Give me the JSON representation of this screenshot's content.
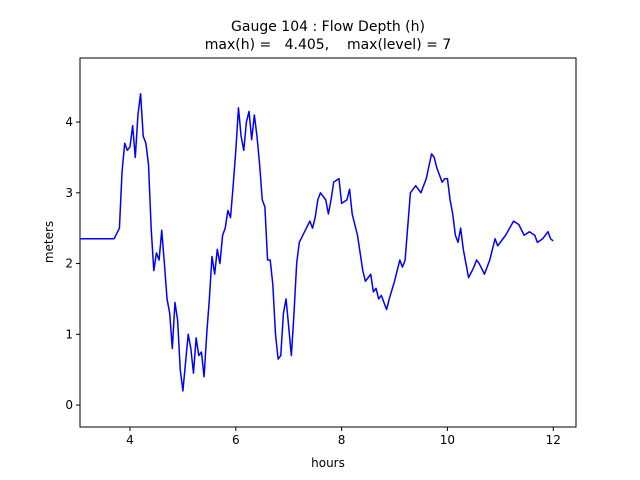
{
  "chart_data": {
    "type": "line",
    "title": "Gauge 104 : Flow Depth (h)",
    "subtitle": "max(h) =   4.405,    max(level) = 7",
    "xlabel": "hours",
    "ylabel": "meters",
    "xlim": [
      3.055,
      12.43
    ],
    "ylim": [
      -0.31,
      4.905
    ],
    "xticks": [
      4,
      6,
      8,
      10,
      12
    ],
    "yticks": [
      0,
      1,
      2,
      3,
      4
    ],
    "grid": false,
    "x": [
      3.055,
      3.7,
      3.8,
      3.85,
      3.9,
      3.95,
      4.0,
      4.05,
      4.1,
      4.15,
      4.2,
      4.25,
      4.3,
      4.35,
      4.4,
      4.45,
      4.5,
      4.55,
      4.6,
      4.65,
      4.7,
      4.75,
      4.8,
      4.85,
      4.9,
      4.95,
      5.0,
      5.05,
      5.1,
      5.15,
      5.2,
      5.25,
      5.3,
      5.35,
      5.4,
      5.45,
      5.5,
      5.55,
      5.6,
      5.65,
      5.7,
      5.75,
      5.8,
      5.85,
      5.9,
      5.95,
      6.0,
      6.05,
      6.1,
      6.15,
      6.2,
      6.25,
      6.3,
      6.35,
      6.4,
      6.45,
      6.5,
      6.55,
      6.6,
      6.65,
      6.7,
      6.75,
      6.8,
      6.85,
      6.9,
      6.95,
      7.0,
      7.05,
      7.1,
      7.15,
      7.2,
      7.3,
      7.4,
      7.45,
      7.5,
      7.55,
      7.6,
      7.7,
      7.75,
      7.8,
      7.85,
      7.95,
      8.0,
      8.1,
      8.15,
      8.2,
      8.3,
      8.4,
      8.45,
      8.5,
      8.55,
      8.6,
      8.65,
      8.7,
      8.75,
      8.8,
      8.85,
      8.9,
      9.0,
      9.1,
      9.15,
      9.2,
      9.3,
      9.4,
      9.5,
      9.6,
      9.7,
      9.75,
      9.8,
      9.9,
      9.95,
      10.0,
      10.05,
      10.1,
      10.15,
      10.2,
      10.25,
      10.3,
      10.4,
      10.5,
      10.55,
      10.6,
      10.7,
      10.8,
      10.9,
      10.95,
      11.1,
      11.25,
      11.35,
      11.45,
      11.55,
      11.65,
      11.7,
      11.8,
      11.9,
      11.95,
      12.0
    ],
    "series": [
      {
        "name": "h",
        "color": "#0000ff",
        "values": [
          2.35,
          2.35,
          2.5,
          3.3,
          3.7,
          3.6,
          3.65,
          3.95,
          3.5,
          4.1,
          4.4,
          3.8,
          3.7,
          3.4,
          2.5,
          1.9,
          2.15,
          2.05,
          2.47,
          2.0,
          1.5,
          1.3,
          0.8,
          1.45,
          1.2,
          0.5,
          0.2,
          0.6,
          1.0,
          0.8,
          0.45,
          0.95,
          0.7,
          0.75,
          0.4,
          1.0,
          1.5,
          2.1,
          1.85,
          2.2,
          2.0,
          2.4,
          2.5,
          2.75,
          2.65,
          3.1,
          3.6,
          4.2,
          3.8,
          3.6,
          4.0,
          4.15,
          3.75,
          4.1,
          3.8,
          3.4,
          2.9,
          2.8,
          2.05,
          2.05,
          1.7,
          1.0,
          0.65,
          0.7,
          1.3,
          1.5,
          1.1,
          0.7,
          1.3,
          2.0,
          2.3,
          2.45,
          2.6,
          2.5,
          2.65,
          2.9,
          3.0,
          2.9,
          2.7,
          2.9,
          3.15,
          3.2,
          2.85,
          2.9,
          3.05,
          2.7,
          2.4,
          1.9,
          1.75,
          1.8,
          1.85,
          1.6,
          1.65,
          1.5,
          1.55,
          1.45,
          1.35,
          1.5,
          1.75,
          2.05,
          1.95,
          2.05,
          3.0,
          3.1,
          3.0,
          3.2,
          3.55,
          3.5,
          3.35,
          3.15,
          3.2,
          3.2,
          2.9,
          2.7,
          2.4,
          2.3,
          2.5,
          2.2,
          1.8,
          1.95,
          2.05,
          2.0,
          1.85,
          2.05,
          2.35,
          2.25,
          2.4,
          2.6,
          2.55,
          2.4,
          2.45,
          2.4,
          2.3,
          2.35,
          2.45,
          2.35,
          2.32
        ]
      }
    ]
  }
}
